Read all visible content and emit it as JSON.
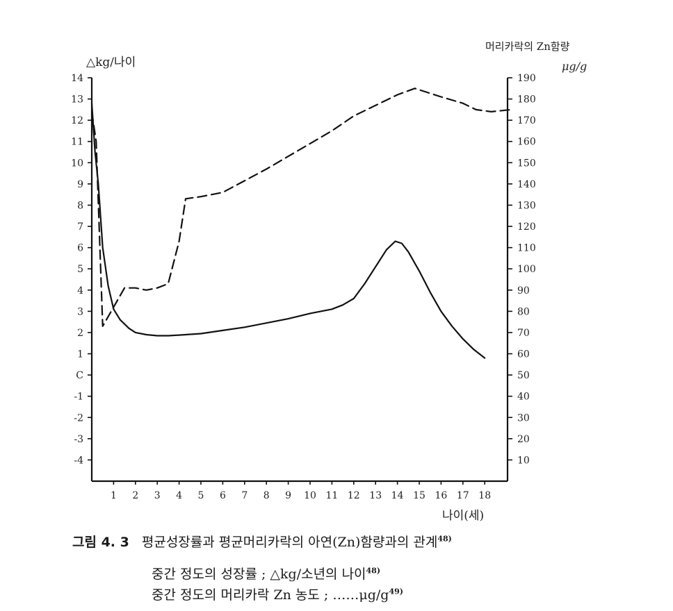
{
  "chart_data": {
    "type": "line",
    "left_axis_title": "△kg/나이",
    "right_axis_title": "머리카락의 Zn함량",
    "right_axis_unit": "μg/g",
    "x_title": "나이(세)",
    "x_ticks": [
      "1",
      "2",
      "3",
      "4",
      "5",
      "6",
      "7",
      "8",
      "9",
      "10",
      "11",
      "12",
      "13",
      "14",
      "15",
      "16",
      "17",
      "18"
    ],
    "left_ticks": [
      "14",
      "13",
      "12",
      "11",
      "10",
      "9",
      "8",
      "7",
      "6",
      "5",
      "4",
      "3",
      "2",
      "1",
      "C",
      "-1",
      "-2",
      "-3",
      "-4"
    ],
    "right_ticks": [
      "190",
      "180",
      "170",
      "160",
      "150",
      "140",
      "130",
      "120",
      "110",
      "100",
      "90",
      "80",
      "70",
      "60",
      "50",
      "40",
      "30",
      "20",
      "10"
    ],
    "xlim": [
      0,
      19.2
    ],
    "ylim_left": [
      -5,
      14
    ],
    "ylim_right": [
      0,
      190
    ],
    "series": [
      {
        "style": "solid",
        "axis": "left",
        "x": [
          0.0,
          0.15,
          0.3,
          0.5,
          0.75,
          1.0,
          1.3,
          1.7,
          2.0,
          2.5,
          3.0,
          3.5,
          4.0,
          5.0,
          6.0,
          7.0,
          8.0,
          9.0,
          10.0,
          11.0,
          11.5,
          12.0,
          12.5,
          13.0,
          13.5,
          13.9,
          14.2,
          14.5,
          15.0,
          15.5,
          16.0,
          16.5,
          17.0,
          17.5,
          18.0
        ],
        "y": [
          12.8,
          10.5,
          9.0,
          6.0,
          4.2,
          3.1,
          2.6,
          2.2,
          2.0,
          1.9,
          1.85,
          1.85,
          1.88,
          1.95,
          2.1,
          2.25,
          2.45,
          2.65,
          2.9,
          3.1,
          3.3,
          3.6,
          4.3,
          5.1,
          5.9,
          6.3,
          6.2,
          5.8,
          4.9,
          3.9,
          3.0,
          2.3,
          1.7,
          1.2,
          0.8
        ]
      },
      {
        "style": "dashed",
        "axis": "right",
        "x": [
          0.0,
          0.2,
          0.5,
          1.0,
          1.5,
          2.0,
          2.5,
          3.0,
          3.5,
          4.0,
          4.3,
          5.0,
          6.0,
          8.0,
          10.0,
          11.0,
          12.0,
          13.0,
          14.0,
          14.8,
          16.0,
          17.0,
          17.6,
          18.3,
          19.2
        ],
        "y": [
          174,
          160,
          73,
          82,
          91,
          91,
          90,
          91,
          93,
          113,
          133,
          134,
          136,
          147,
          159,
          165,
          172,
          177,
          182,
          185,
          181,
          178,
          175,
          174,
          175
        ]
      }
    ]
  },
  "caption": {
    "figure_number": "그림 4. 3",
    "title": "평균성장률과 평균머리카락의 아연(Zn)함량과의 관계",
    "title_ref": "48)",
    "line1": "중간 정도의 성장률 ; △kg/소년의 나이",
    "line1_ref": "48)",
    "line2": "중간 정도의 머리카락 Zn 농도 ; ……μg/g",
    "line2_ref": "49)"
  }
}
